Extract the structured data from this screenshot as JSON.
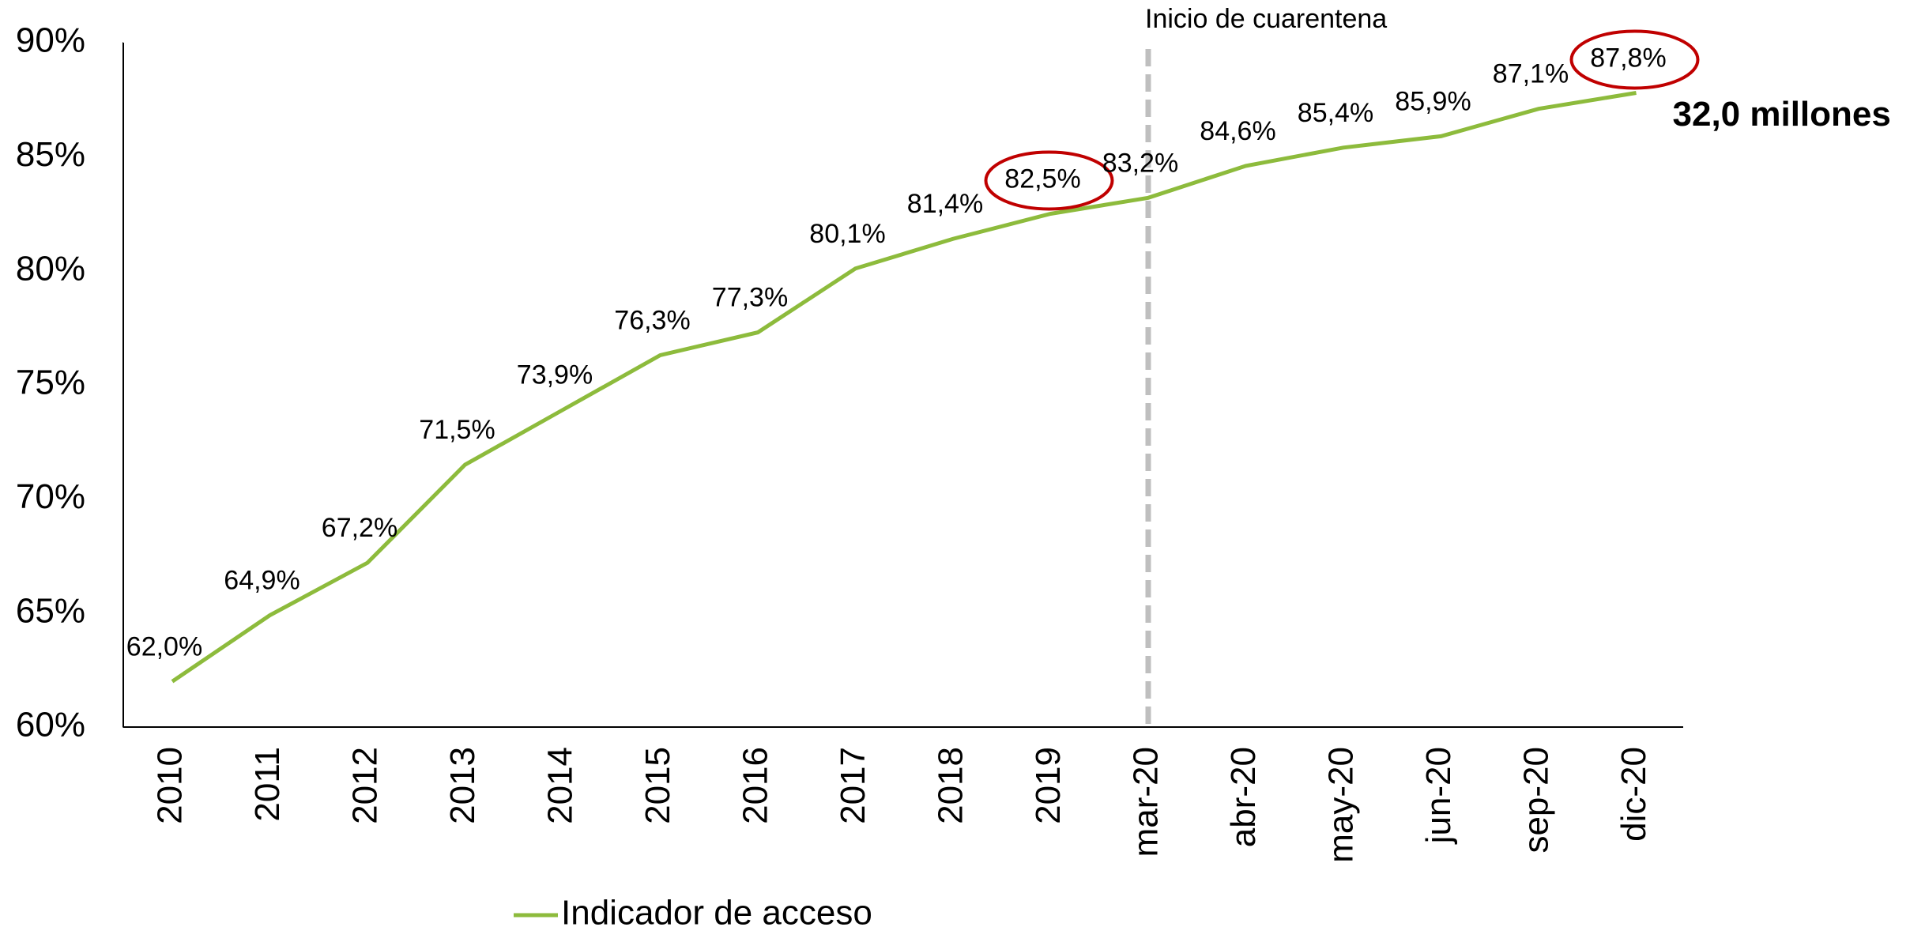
{
  "chart_data": {
    "type": "line",
    "categories": [
      "2010",
      "2011",
      "2012",
      "2013",
      "2014",
      "2015",
      "2016",
      "2017",
      "2018",
      "2019",
      "mar-20",
      "abr-20",
      "may-20",
      "jun-20",
      "sep-20",
      "dic-20"
    ],
    "series": [
      {
        "name": "Indicador de acceso",
        "color": "#8dbb3c",
        "values": [
          62.0,
          64.9,
          67.2,
          71.5,
          73.9,
          76.3,
          77.3,
          80.1,
          81.4,
          82.5,
          83.2,
          84.6,
          85.4,
          85.9,
          87.1,
          87.8
        ],
        "value_labels": [
          "62,0%",
          "64,9%",
          "67,2%",
          "71,5%",
          "73,9%",
          "76,3%",
          "77,3%",
          "80,1%",
          "81,4%",
          "82,5%",
          "83,2%",
          "84,6%",
          "85,4%",
          "85,9%",
          "87,1%",
          "87,8%"
        ]
      }
    ],
    "ylim": [
      60,
      90
    ],
    "yticks": [
      {
        "value": 60,
        "label": "60%"
      },
      {
        "value": 65,
        "label": "65%"
      },
      {
        "value": 70,
        "label": "70%"
      },
      {
        "value": 75,
        "label": "75%"
      },
      {
        "value": 80,
        "label": "80%"
      },
      {
        "value": 85,
        "label": "85%"
      },
      {
        "value": 90,
        "label": "90%"
      }
    ],
    "annotations": [
      {
        "text": "Inicio de cuarentena",
        "category": "mar-20"
      },
      {
        "text": "32,0 millones",
        "category": "dic-20",
        "color": "#70ad47"
      }
    ],
    "highlighted_categories": [
      "2019",
      "dic-20"
    ],
    "highlight_color": "#c00000",
    "grid": false,
    "legend": "bottom"
  }
}
